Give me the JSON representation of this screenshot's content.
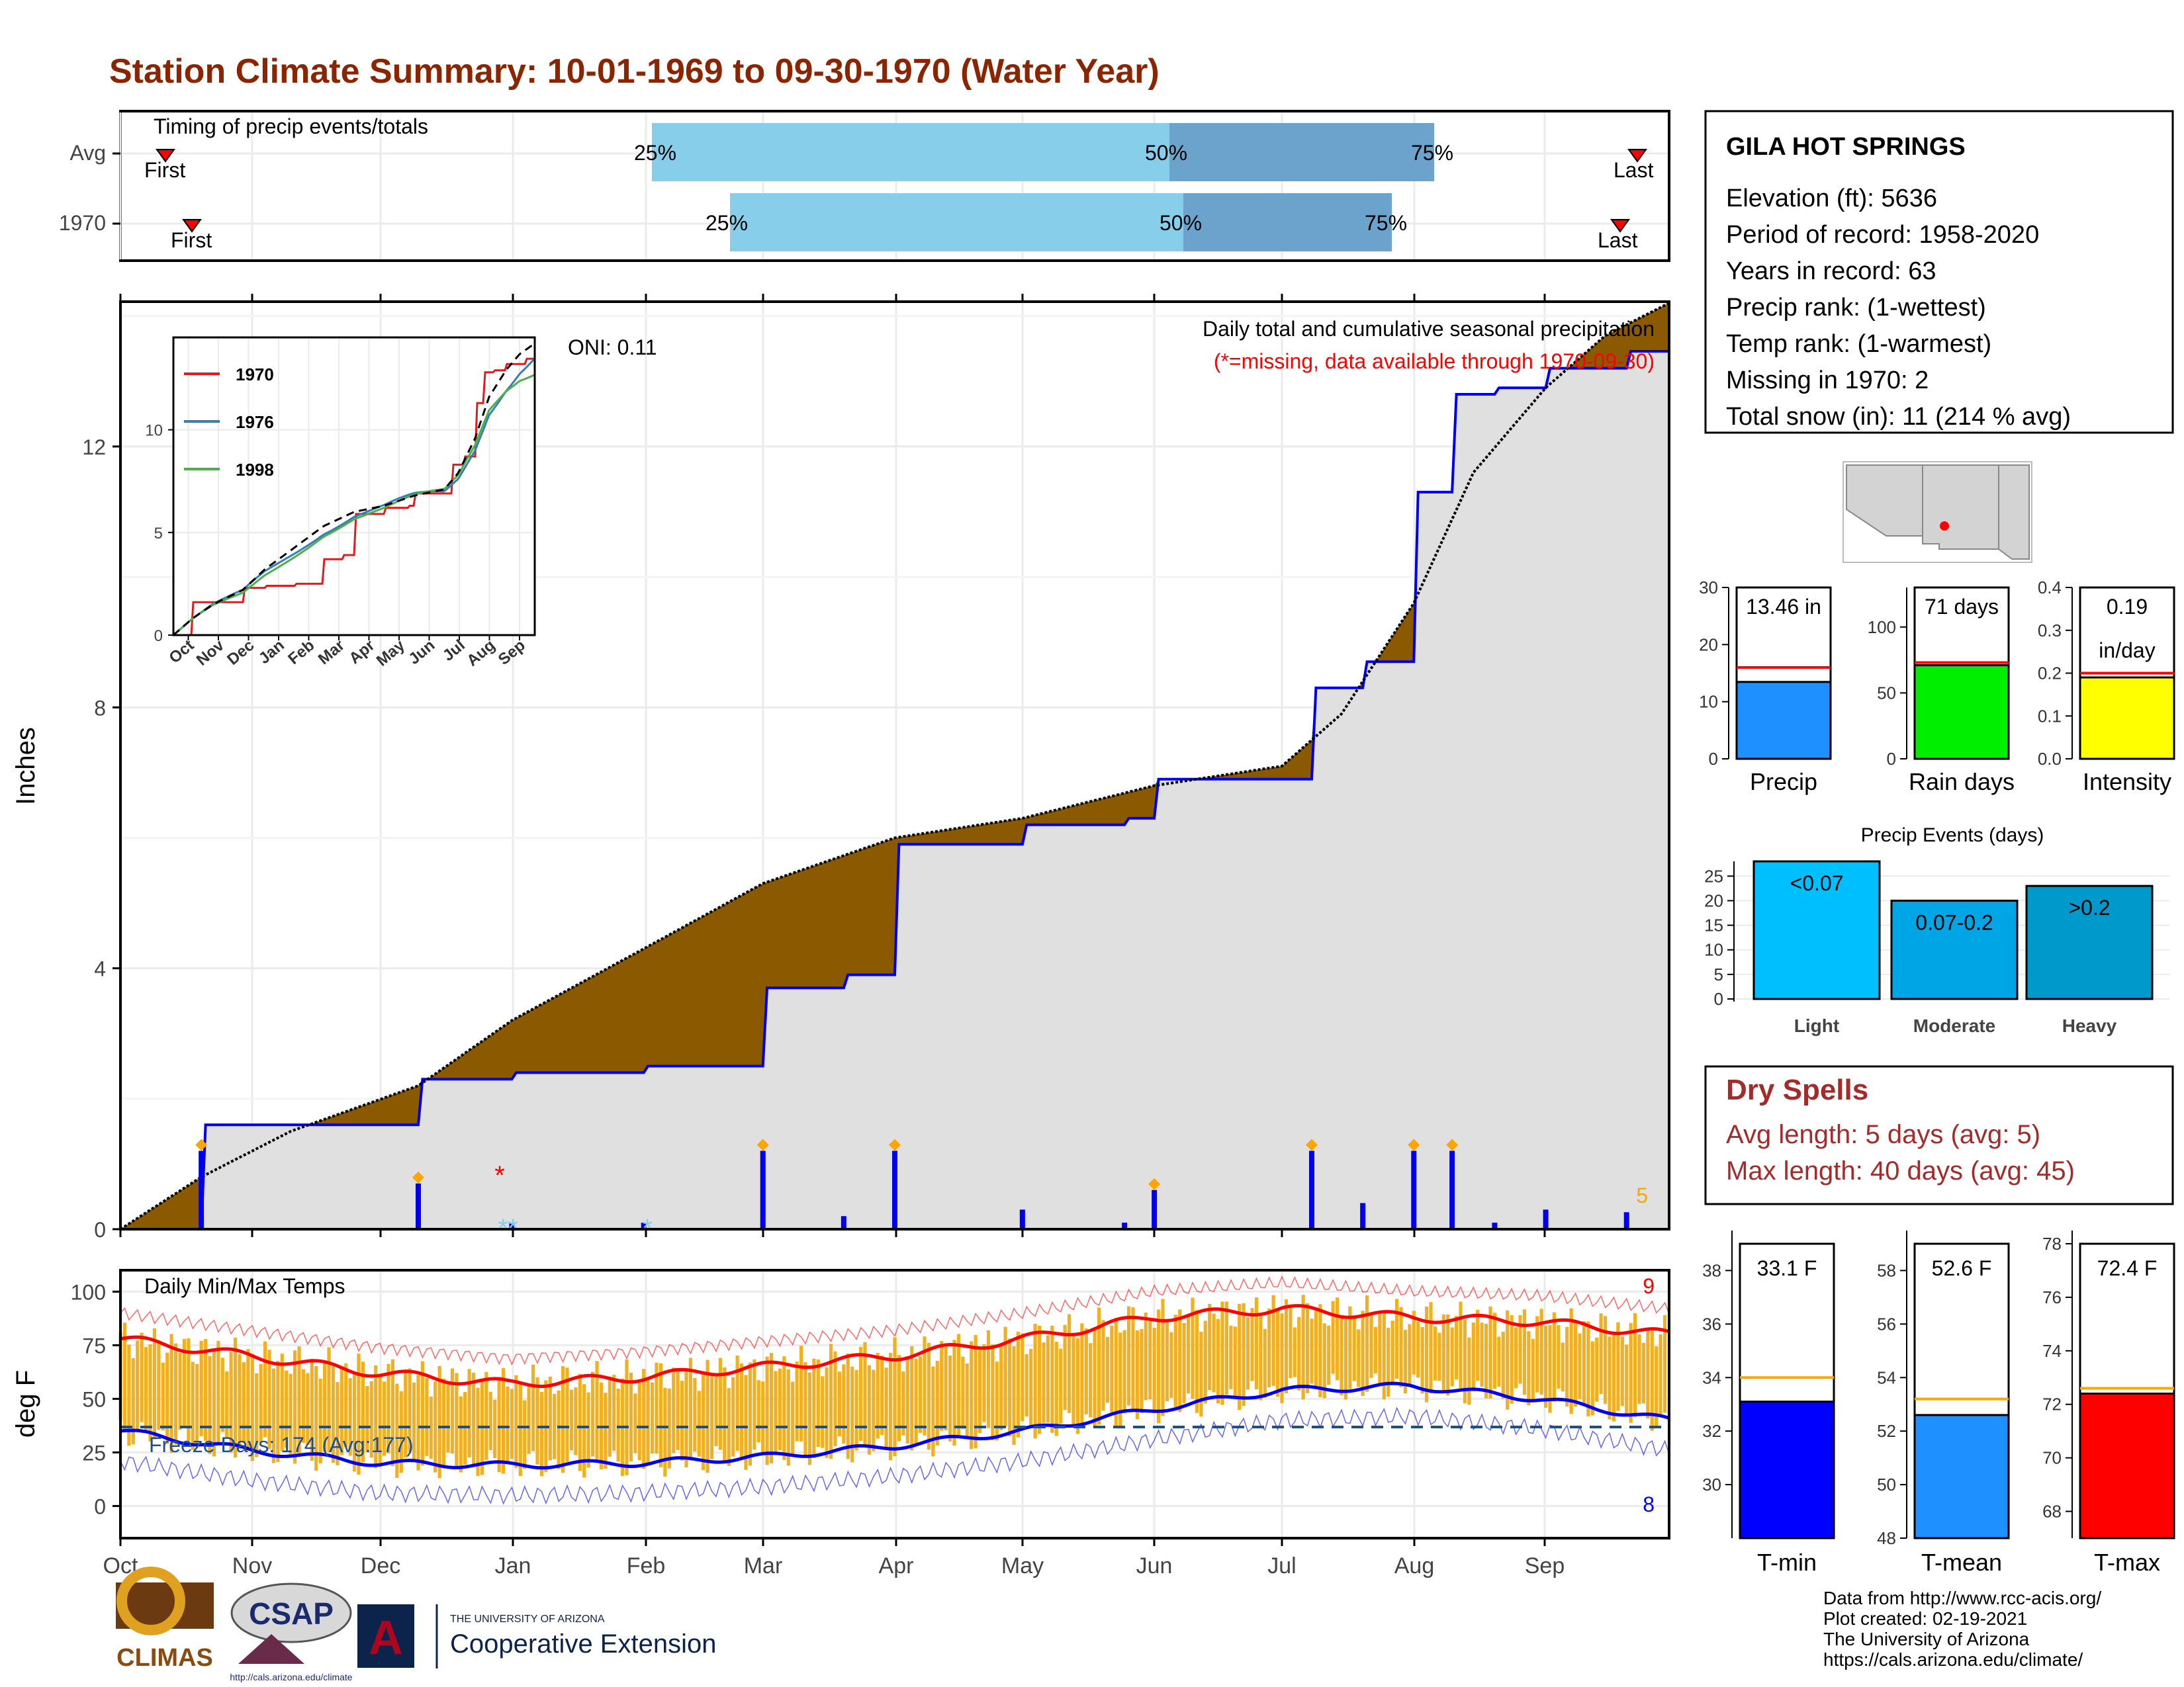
{
  "title": "Station Climate Summary: 10-01-1969 to 09-30-1970 (Water Year)",
  "colors": {
    "title": "#8b2500",
    "brown": "#8b5a00",
    "green": "#008000",
    "grey": "#e0e0e0",
    "blue": "#0000ee",
    "light_blue": "#87ceeb",
    "steel": "#6ba3cc",
    "orange": "#ffa500",
    "temp_bar": "#f0b020",
    "red": "#ff0000",
    "dry_red": "#a52a2a"
  },
  "timing": {
    "label": "Timing of precip events/totals",
    "rows": [
      "Avg",
      "1970"
    ],
    "first_label": "First",
    "last_label": "Last",
    "p25": "25%",
    "p50": "50%",
    "p75": "75%"
  },
  "station": {
    "name": "GILA HOT SPRINGS",
    "lines": [
      "Elevation (ft): 5636",
      "Period of record: 1958-2020",
      "Years in record: 63",
      "Precip rank:  (1-wettest)",
      "Temp rank:  (1-warmest)",
      "Missing in 1970: 2",
      "Total snow (in): 11 (214 % avg)"
    ]
  },
  "main_plot": {
    "ylabel": "Inches",
    "caption": "Daily total and cumulative seasonal precipitation",
    "missing_note": "(*=missing, data available through 1970-09-30)",
    "oni": "ONI: 0.11",
    "corner_count": "5",
    "months": [
      "Oct",
      "Nov",
      "Dec",
      "Jan",
      "Feb",
      "Mar",
      "Apr",
      "May",
      "Jun",
      "Jul",
      "Aug",
      "Sep"
    ],
    "yticks": [
      "0",
      "4",
      "8",
      "12"
    ]
  },
  "inset": {
    "years": [
      "1970",
      "1976",
      "1998"
    ],
    "years_colors": [
      "#e41a1c",
      "#377eb8",
      "#4daf4a"
    ],
    "months": [
      "Oct",
      "Nov",
      "Dec",
      "Jan",
      "Feb",
      "Mar",
      "Apr",
      "May",
      "Jun",
      "Jul",
      "Aug",
      "Sep"
    ],
    "yticks": [
      "0",
      "5",
      "10"
    ]
  },
  "temp_plot": {
    "title": "Daily Min/Max Temps",
    "ylabel": "deg F",
    "yticks": [
      "0",
      "25",
      "50",
      "75",
      "100"
    ],
    "freeze_label": "Freeze Days: 174 (Avg:177)",
    "top_count": "9",
    "bottom_count": "8"
  },
  "small_bars": [
    {
      "label": "Precip",
      "value_label": "13.46 in",
      "yticks": [
        "0",
        "10",
        "20",
        "30"
      ],
      "color": "#1e90ff"
    },
    {
      "label": "Rain days",
      "value_label": "71 days",
      "yticks": [
        "0",
        "50",
        "100"
      ],
      "color": "#00ee00"
    },
    {
      "label": "Intensity",
      "value_label": "0.19",
      "value_label2": "in/day",
      "yticks": [
        "0.0",
        "0.1",
        "0.2",
        "0.3",
        "0.4"
      ],
      "color": "#ffff00"
    }
  ],
  "events": {
    "title": "Precip Events (days)",
    "yticks": [
      "0",
      "5",
      "10",
      "15",
      "20",
      "25"
    ],
    "bars": [
      {
        "category": "Light",
        "label": "<0.07",
        "color": "#00bfff"
      },
      {
        "category": "Moderate",
        "label": "0.07-0.2",
        "color": "#00a5e5"
      },
      {
        "category": "Heavy",
        "label": ">0.2",
        "color": "#0099cc"
      }
    ]
  },
  "dry_spells": {
    "title": "Dry Spells",
    "avg_length": "Avg length: 5 days (avg: 5)",
    "max_length": "Max length: 40 days (avg: 45)"
  },
  "temp_bars": [
    {
      "label": "T-min",
      "value_label": "33.1 F",
      "yticks": [
        "30",
        "32",
        "34",
        "36",
        "38"
      ],
      "color": "#0000ff"
    },
    {
      "label": "T-mean",
      "value_label": "52.6 F",
      "yticks": [
        "48",
        "50",
        "52",
        "54",
        "56",
        "58"
      ],
      "color": "#1e90ff"
    },
    {
      "label": "T-max",
      "value_label": "72.4 F",
      "yticks": [
        "68",
        "70",
        "72",
        "74",
        "76",
        "78"
      ],
      "color": "#ff0000"
    }
  ],
  "footer": {
    "lines": [
      "Data from http://www.rcc-acis.org/",
      "Plot created: 02-19-2021",
      "The University of Arizona",
      "https://cals.arizona.edu/climate/"
    ],
    "climas": "CLIMAS",
    "csap": "CSAP",
    "csap_url": "http://cals.arizona.edu/climate",
    "ua_small": "THE UNIVERSITY OF ARIZONA",
    "ua_big": "Cooperative Extension",
    "ua_letter": "A"
  },
  "chart_data": [
    {
      "type": "area",
      "title": "Daily total and cumulative seasonal precipitation",
      "ylabel": "Inches",
      "x_unit": "month",
      "ylim": [
        0,
        14.2
      ],
      "series": [
        {
          "name": "1970",
          "x": [
            "1969-10-01",
            "1969-10-20",
            "1969-11-10",
            "1969-12-10",
            "1970-01-01",
            "1970-02-01",
            "1970-02-22",
            "1970-03-01",
            "1970-03-20",
            "1970-04-01",
            "1970-05-01",
            "1970-05-25",
            "1970-06-01",
            "1970-07-01",
            "1970-07-08",
            "1970-07-20",
            "1970-08-01",
            "1970-08-10",
            "1970-08-20",
            "1970-09-01",
            "1970-09-20",
            "1970-09-30"
          ],
          "values": [
            0,
            1.6,
            1.6,
            2.3,
            2.4,
            2.5,
            2.5,
            3.7,
            3.9,
            5.9,
            6.2,
            6.3,
            6.9,
            6.9,
            8.3,
            8.7,
            11.3,
            12.8,
            12.9,
            13.2,
            13.46,
            13.46
          ]
        },
        {
          "name": "Avg",
          "x": [
            "1969-10-01",
            "1969-10-20",
            "1969-11-10",
            "1969-12-10",
            "1970-01-01",
            "1970-02-01",
            "1970-03-01",
            "1970-04-01",
            "1970-05-01",
            "1970-06-01",
            "1970-07-01",
            "1970-07-15",
            "1970-08-01",
            "1970-08-15",
            "1970-09-01",
            "1970-09-15",
            "1970-09-30"
          ],
          "values": [
            0,
            0.8,
            1.5,
            2.2,
            3.2,
            4.3,
            5.3,
            6.0,
            6.3,
            6.8,
            7.1,
            7.9,
            9.6,
            11.6,
            12.9,
            13.7,
            14.2
          ]
        }
      ]
    },
    {
      "type": "bar",
      "title": "Precip",
      "categories": [
        "1970"
      ],
      "values": [
        13.46
      ],
      "ylim": [
        0,
        30
      ],
      "reference": 16
    },
    {
      "type": "bar",
      "title": "Rain days",
      "categories": [
        "1970"
      ],
      "values": [
        71
      ],
      "ylim": [
        0,
        130
      ],
      "reference": 73
    },
    {
      "type": "bar",
      "title": "Intensity",
      "categories": [
        "1970"
      ],
      "values": [
        0.19
      ],
      "ylim": [
        0,
        0.4
      ],
      "reference": 0.2
    },
    {
      "type": "bar",
      "title": "Precip Events (days)",
      "categories": [
        "Light",
        "Moderate",
        "Heavy"
      ],
      "values": [
        28,
        20,
        23
      ],
      "ylim": [
        0,
        28
      ]
    },
    {
      "type": "bar",
      "title": "T-min",
      "categories": [
        "1970"
      ],
      "values": [
        33.1
      ],
      "ylim": [
        28,
        39
      ],
      "reference": 34
    },
    {
      "type": "bar",
      "title": "T-mean",
      "categories": [
        "1970"
      ],
      "values": [
        52.6
      ],
      "ylim": [
        48,
        59
      ],
      "reference": 53.2
    },
    {
      "type": "bar",
      "title": "T-max",
      "categories": [
        "1970"
      ],
      "values": [
        72.4
      ],
      "ylim": [
        67,
        78
      ],
      "reference": 72.6
    },
    {
      "type": "line",
      "title": "Daily Min/Max Temps",
      "ylabel": "deg F",
      "ylim": [
        -15,
        110
      ],
      "series": [
        {
          "name": "avg max",
          "x": [
            "Oct",
            "Nov",
            "Dec",
            "Jan",
            "Feb",
            "Mar",
            "Apr",
            "May",
            "Jun",
            "Jul",
            "Aug",
            "Sep",
            "Oct"
          ],
          "values": [
            78,
            70,
            62,
            57,
            60,
            65,
            70,
            78,
            88,
            92,
            88,
            86,
            80
          ]
        },
        {
          "name": "avg min",
          "x": [
            "Oct",
            "Nov",
            "Dec",
            "Jan",
            "Feb",
            "Mar",
            "Apr",
            "May",
            "Jun",
            "Jul",
            "Aug",
            "Sep",
            "Oct"
          ],
          "values": [
            35,
            26,
            20,
            19,
            20,
            23,
            28,
            35,
            45,
            54,
            56,
            50,
            40
          ]
        }
      ],
      "freeze_line": 32
    }
  ]
}
